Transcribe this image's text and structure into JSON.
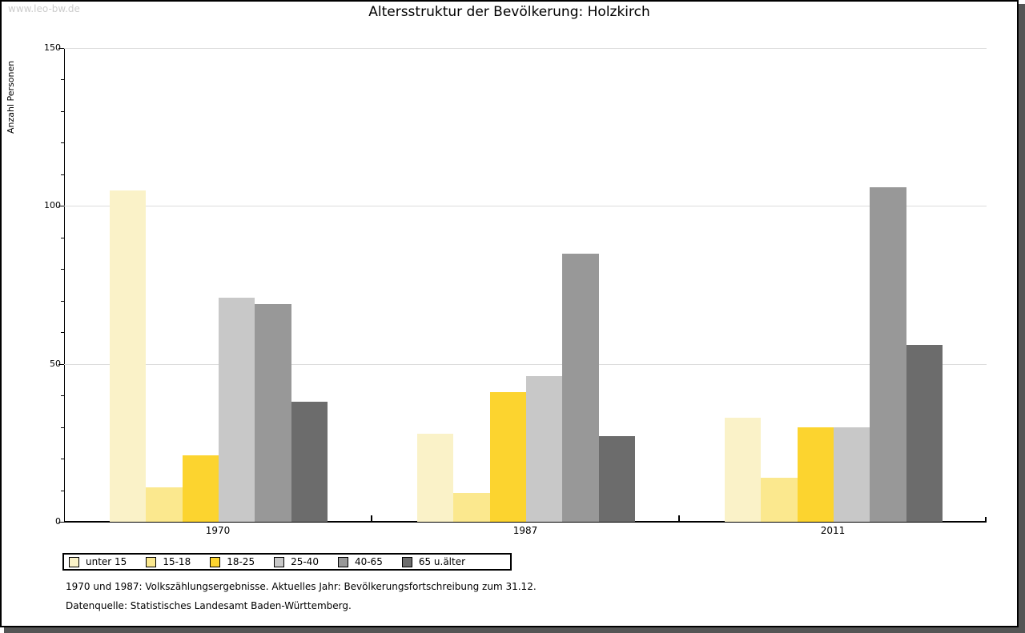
{
  "page": {
    "watermark": "www.leo-bw.de",
    "title": "Altersstruktur der Bevölkerung: Holzkirch",
    "footnotes": [
      "1970 und 1987: Volkszählungsergebnisse. Aktuelles Jahr: Bevölkerungsfortschreibung zum 31.12.",
      "Datenquelle: Statistisches Landesamt Baden-Württemberg."
    ]
  },
  "colors": {
    "axis": "#000000",
    "grid": "#dcdcdc",
    "watermark": "#cccccc",
    "frame_shadow": "#555555"
  },
  "chart_data": {
    "type": "bar",
    "title": "Altersstruktur der Bevölkerung: Holzkirch",
    "xlabel": "",
    "ylabel": "Anzahl Personen",
    "ylim": [
      0,
      150
    ],
    "yticks_major": [
      0,
      50,
      100,
      150
    ],
    "ytick_minor_step": 10,
    "gridlines_y": [
      50,
      100,
      150
    ],
    "grid": "horizontal only",
    "legend_position": "bottom-left",
    "categories": [
      "1970",
      "1987",
      "2011"
    ],
    "series": [
      {
        "name": "unter 15",
        "color": "#FAF2C8",
        "values": [
          105,
          28,
          33
        ]
      },
      {
        "name": "15-18",
        "color": "#FBE88E",
        "values": [
          11,
          9,
          14
        ]
      },
      {
        "name": "18-25",
        "color": "#FCD42F",
        "values": [
          21,
          41,
          30
        ]
      },
      {
        "name": "25-40",
        "color": "#C8C8C8",
        "values": [
          71,
          46,
          30
        ]
      },
      {
        "name": "40-65",
        "color": "#989898",
        "values": [
          69,
          85,
          106
        ]
      },
      {
        "name": "65 u.älter",
        "color": "#6C6C6C",
        "values": [
          38,
          27,
          56
        ]
      }
    ]
  }
}
